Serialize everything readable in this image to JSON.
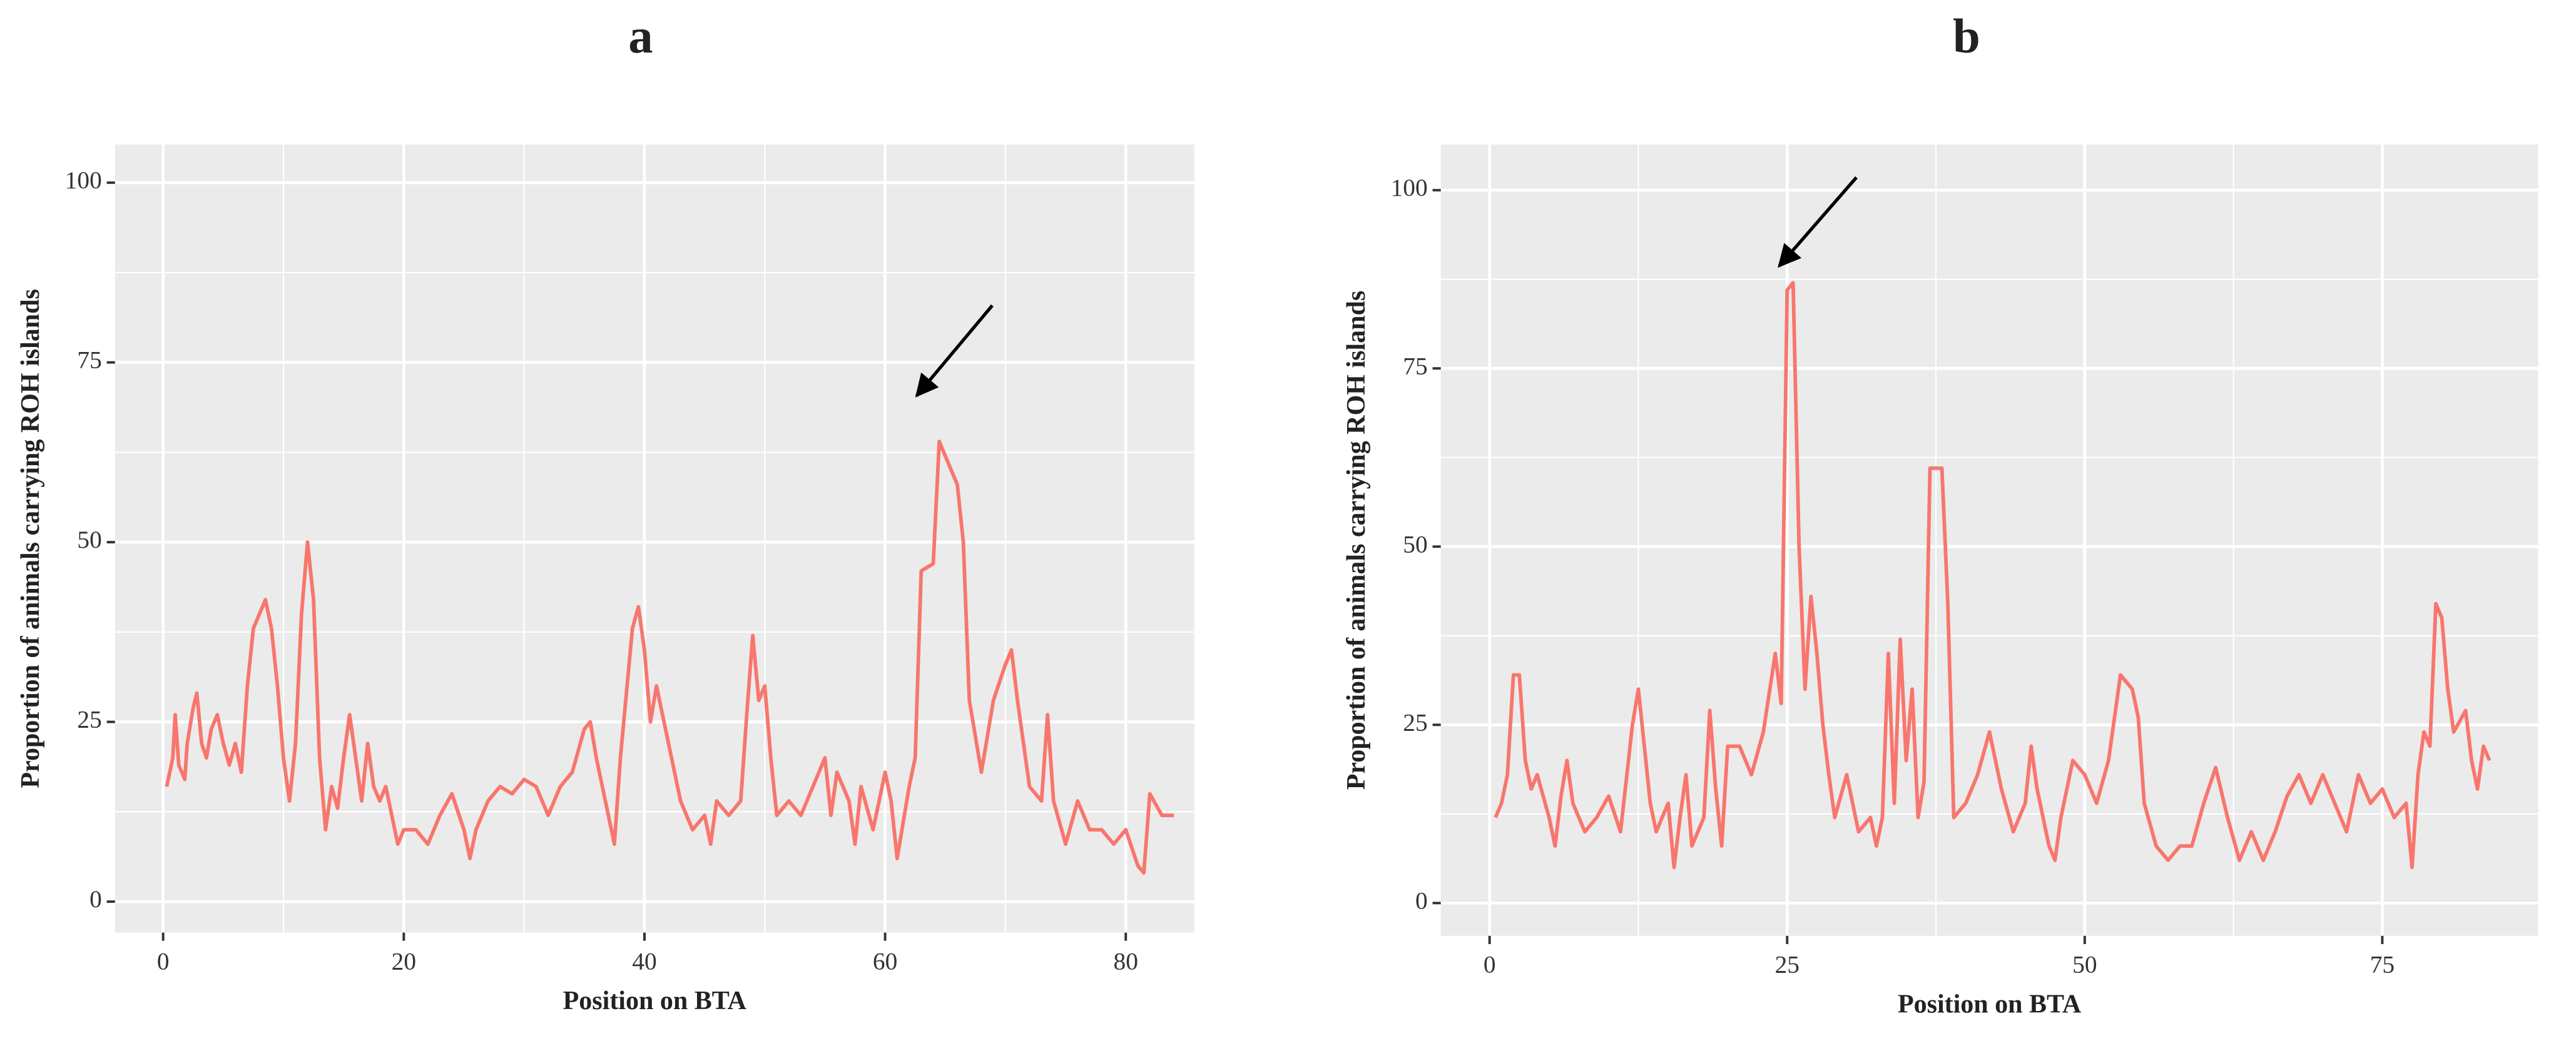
{
  "chart_data": [
    {
      "type": "line",
      "title": "a",
      "x_label": "Position on BTA",
      "y_label": "Proportion of animals carrying ROH islands",
      "xlim": [
        -4,
        85.7
      ],
      "ylim": [
        -4.3,
        105.3
      ],
      "xticks": [
        0,
        20,
        40,
        60,
        80
      ],
      "yticks": [
        0,
        25,
        50,
        75,
        100
      ],
      "grid": true,
      "series": [
        {
          "color": "#f8766d",
          "x": [
            0.3,
            0.8,
            1,
            1.3,
            1.8,
            2,
            2.5,
            2.8,
            3.2,
            3.6,
            4,
            4.5,
            5,
            5.5,
            6,
            6.5,
            7,
            7.5,
            8,
            8.5,
            9,
            9.5,
            10,
            10.5,
            11,
            11.5,
            12,
            12.5,
            13,
            13.5,
            14,
            14.5,
            15,
            15.5,
            16,
            16.5,
            17,
            17.5,
            18,
            18.5,
            19,
            19.5,
            20,
            21,
            22,
            23,
            24,
            25,
            25.5,
            26,
            27,
            28,
            29,
            30,
            31,
            32,
            33,
            34,
            35,
            35.5,
            36,
            37,
            37.5,
            38,
            39,
            39.5,
            40,
            40.5,
            41,
            42,
            43,
            44,
            45,
            45.5,
            46,
            47,
            48,
            48.5,
            49,
            49.5,
            50,
            50.5,
            51,
            52,
            53,
            54,
            55,
            55.5,
            56,
            57,
            57.5,
            58,
            59,
            60,
            60.5,
            61,
            62,
            62.5,
            63,
            64,
            64.5,
            65,
            66,
            66.5,
            67,
            68,
            69,
            70,
            70.5,
            71,
            72,
            73,
            73.5,
            74,
            75,
            76,
            77,
            78,
            79,
            80,
            81,
            81.5,
            82,
            83,
            84
          ],
          "values": [
            16,
            20,
            26,
            19,
            17,
            22,
            27,
            29,
            22,
            20,
            24,
            26,
            22,
            19,
            22,
            18,
            30,
            38,
            40,
            42,
            38,
            30,
            20,
            14,
            22,
            40,
            50,
            42,
            20,
            10,
            16,
            13,
            20,
            26,
            20,
            14,
            22,
            16,
            14,
            16,
            12,
            8,
            10,
            10,
            8,
            12,
            15,
            10,
            6,
            10,
            14,
            16,
            15,
            17,
            16,
            12,
            16,
            18,
            24,
            25,
            20,
            12,
            8,
            20,
            38,
            41,
            35,
            25,
            30,
            22,
            14,
            10,
            12,
            8,
            14,
            12,
            14,
            26,
            37,
            28,
            30,
            20,
            12,
            14,
            12,
            16,
            20,
            12,
            18,
            14,
            8,
            16,
            10,
            18,
            14,
            6,
            16,
            20,
            46,
            47,
            64,
            62,
            58,
            50,
            28,
            18,
            28,
            33,
            35,
            28,
            16,
            14,
            26,
            14,
            8,
            14,
            10,
            10,
            8,
            10,
            5,
            4,
            15,
            12,
            12
          ]
        }
      ]
    },
    {
      "type": "line",
      "title": "b",
      "x_label": "Position on BTA",
      "y_label": "Proportion of animals carrying ROH islands",
      "xlim": [
        -4.1,
        88.1
      ],
      "ylim": [
        -4.6,
        106.4
      ],
      "xticks": [
        0,
        25,
        50,
        75
      ],
      "yticks": [
        0,
        25,
        50,
        75,
        100
      ],
      "grid": true,
      "series": [
        {
          "color": "#f8766d",
          "x": [
            0.5,
            1,
            1.5,
            2,
            2.5,
            3,
            3.5,
            4,
            5,
            5.5,
            6,
            6.5,
            7,
            8,
            9,
            10,
            11,
            12,
            12.5,
            13,
            13.5,
            14,
            15,
            15.5,
            16,
            16.5,
            17,
            18,
            18.5,
            19,
            19.5,
            20,
            21,
            22,
            23,
            24,
            24.5,
            25,
            25.5,
            26,
            26.5,
            27,
            27.5,
            28,
            28.5,
            29,
            30,
            30.5,
            31,
            32,
            32.5,
            33,
            33.5,
            34,
            34.5,
            35,
            35.5,
            36,
            36.5,
            37,
            38,
            38.5,
            39,
            40,
            41,
            42,
            43,
            44,
            45,
            45.5,
            46,
            47,
            47.5,
            48,
            49,
            50,
            51,
            52,
            53,
            54,
            54.5,
            55,
            56,
            57,
            58,
            59,
            60,
            61,
            62,
            63,
            64,
            65,
            66,
            67,
            68,
            69,
            70,
            71,
            72,
            73,
            74,
            75,
            76,
            77,
            77.5,
            78,
            78.5,
            79,
            79.5,
            80,
            80.5,
            81,
            82,
            82.5,
            83,
            83.5,
            84
          ],
          "values": [
            12,
            14,
            18,
            32,
            32,
            20,
            16,
            18,
            12,
            8,
            15,
            20,
            14,
            10,
            12,
            15,
            10,
            25,
            30,
            22,
            14,
            10,
            14,
            5,
            12,
            18,
            8,
            12,
            27,
            16,
            8,
            22,
            22,
            18,
            24,
            35,
            28,
            86,
            87,
            50,
            30,
            43,
            35,
            25,
            18,
            12,
            18,
            14,
            10,
            12,
            8,
            12,
            35,
            14,
            37,
            20,
            30,
            12,
            17,
            61,
            61,
            42,
            12,
            14,
            18,
            24,
            16,
            10,
            14,
            22,
            16,
            8,
            6,
            12,
            20,
            18,
            14,
            20,
            32,
            30,
            26,
            14,
            8,
            6,
            8,
            8,
            14,
            19,
            12,
            6,
            10,
            6,
            10,
            15,
            18,
            14,
            18,
            14,
            10,
            18,
            14,
            16,
            12,
            14,
            5,
            18,
            24,
            22,
            42,
            40,
            30,
            24,
            27,
            20,
            16,
            22,
            20
          ]
        }
      ]
    }
  ]
}
